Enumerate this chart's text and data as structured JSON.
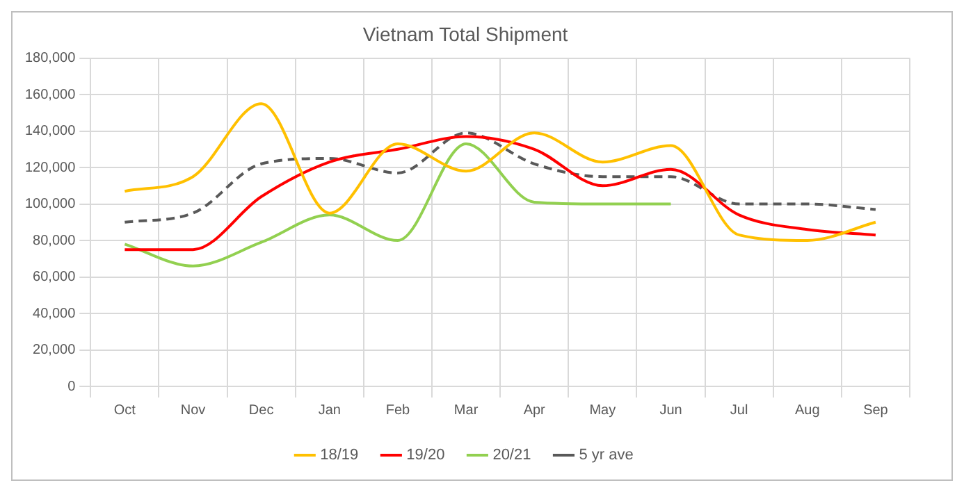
{
  "chart_data": {
    "type": "line",
    "title": "Vietnam Total Shipment",
    "categories": [
      "Oct",
      "Nov",
      "Dec",
      "Jan",
      "Feb",
      "Mar",
      "Apr",
      "May",
      "Jun",
      "Jul",
      "Aug",
      "Sep"
    ],
    "series": [
      {
        "name": "18/19",
        "color": "#ffc000",
        "values": [
          107000,
          115000,
          155000,
          95000,
          133000,
          118000,
          139000,
          123000,
          132000,
          83000,
          80000,
          90000
        ]
      },
      {
        "name": "19/20",
        "color": "#ff0000",
        "values": [
          75000,
          75000,
          104000,
          123000,
          130000,
          137000,
          130000,
          110000,
          119000,
          94000,
          86000,
          83000
        ]
      },
      {
        "name": "20/21",
        "color": "#92d050",
        "values": [
          78000,
          66000,
          79000,
          94000,
          80000,
          133000,
          101000,
          100000,
          100000,
          null,
          null,
          null
        ]
      },
      {
        "name": "5 yr ave",
        "color": "#595959",
        "line_style": "dashed",
        "values": [
          90000,
          95000,
          122000,
          125000,
          117000,
          139000,
          122000,
          115000,
          115000,
          100000,
          100000,
          97000
        ]
      }
    ],
    "ylim": [
      0,
      180000
    ],
    "yticks": [
      0,
      {
        "value": 20000,
        "label": "20,000"
      },
      {
        "value": 40000,
        "label": "40,000"
      },
      {
        "value": 60000,
        "label": "60,000"
      },
      {
        "value": 80000,
        "label": "80,000"
      },
      {
        "value": 100000,
        "label": "100,000"
      },
      {
        "value": 120000,
        "label": "120,000"
      },
      {
        "value": 140000,
        "label": "140,000"
      },
      {
        "value": 160000,
        "label": "160,000"
      },
      {
        "value": 180000,
        "label": "180,000"
      }
    ],
    "grid": true,
    "legend": "bottom",
    "marker": "none",
    "line_style": "solid"
  }
}
